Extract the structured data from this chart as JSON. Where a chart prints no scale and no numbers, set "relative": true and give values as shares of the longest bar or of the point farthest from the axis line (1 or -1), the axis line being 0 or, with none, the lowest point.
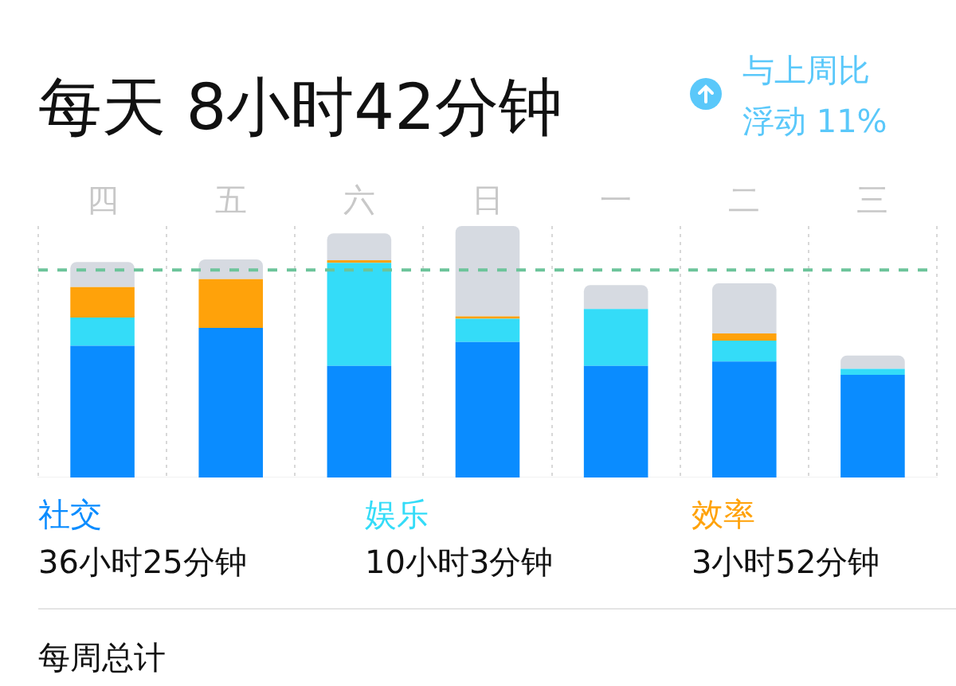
{
  "chart_data": {
    "type": "bar",
    "title": "每天 8小时42分钟",
    "subtitle": "与上周比浮动 11%",
    "relative": true,
    "stacked": true,
    "legend": "bottom",
    "grid": "x",
    "categories": [
      "四",
      "五",
      "六",
      "日",
      "一",
      "二",
      "三"
    ],
    "series": [
      {
        "name": "社交",
        "color": "#0a8cff",
        "values": [
          0.524,
          0.595,
          0.444,
          0.539,
          0.444,
          0.461,
          0.408
        ]
      },
      {
        "name": "娱乐",
        "color": "#34dcf8",
        "values": [
          0.112,
          null,
          0.41,
          0.092,
          0.226,
          0.083,
          0.024
        ]
      },
      {
        "name": "效率",
        "color": "#ffa20a",
        "values": [
          0.121,
          0.194,
          0.01,
          0.01,
          null,
          0.029,
          null
        ]
      },
      {
        "color": "#d6dae1",
        "values": [
          0.1,
          0.078,
          0.107,
          0.359,
          0.095,
          0.199,
          0.053
        ]
      }
    ],
    "ref_lines": [
      {
        "axis": "y",
        "value": 0.825,
        "color": "#6cc49a",
        "line_style": "dashed"
      }
    ],
    "annotations": [
      "36小时25分钟",
      "10小时3分钟",
      "3小时52分钟",
      "每周总计"
    ]
  }
}
